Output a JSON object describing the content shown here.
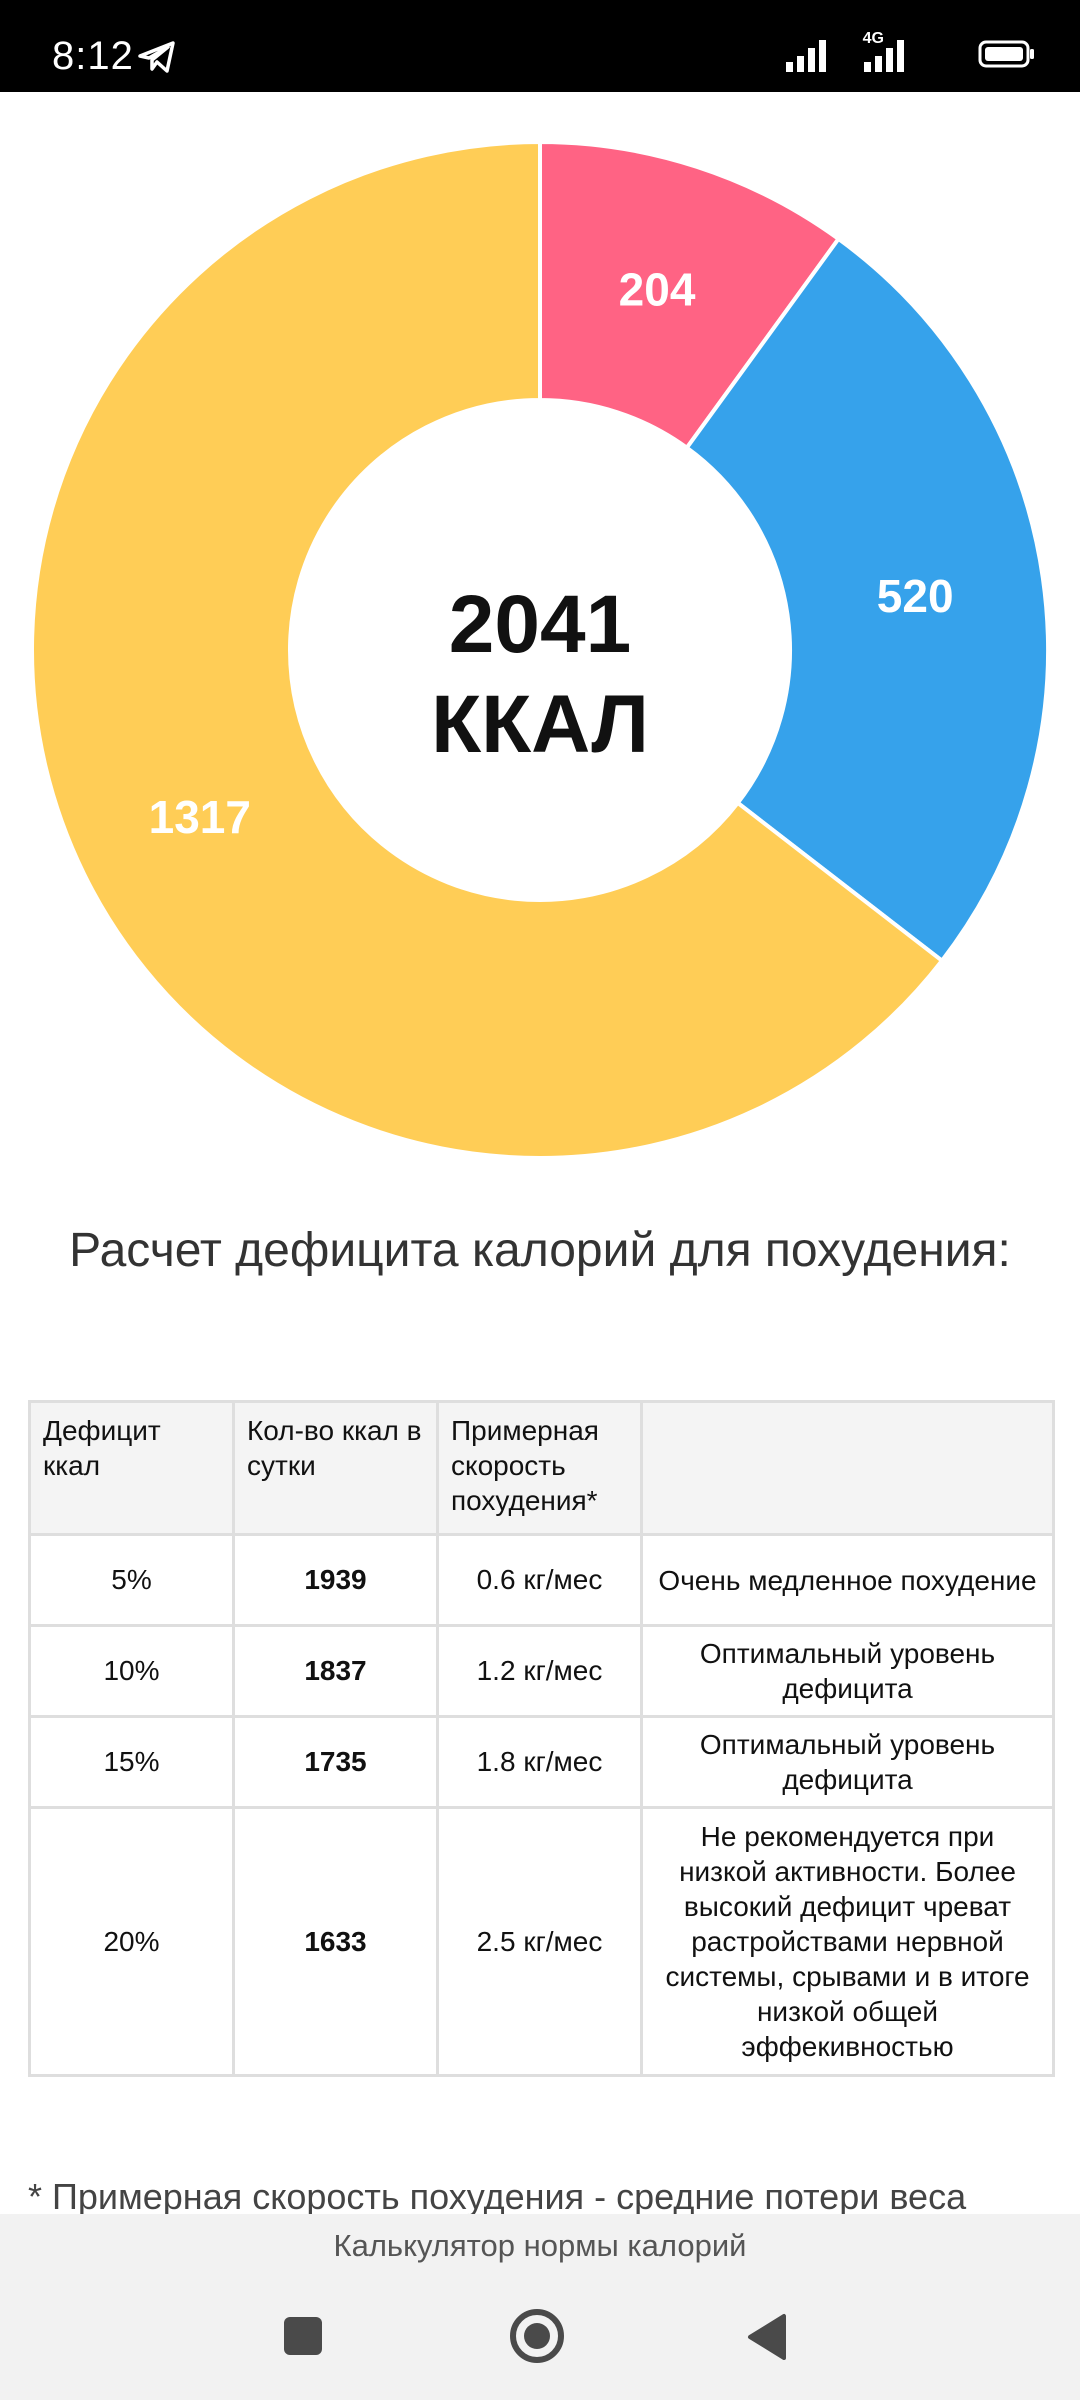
{
  "status_bar": {
    "time": "8:12",
    "network": "4G",
    "icons": [
      "telegram-icon",
      "signal-icon",
      "signal-icon",
      "battery-icon"
    ]
  },
  "chart_data": {
    "type": "pie",
    "subtype": "donut",
    "center_value": "2041",
    "center_unit": "ККАЛ",
    "slices": [
      {
        "label": "204",
        "value": 204,
        "color": "#FF6384"
      },
      {
        "label": "520",
        "value": 520,
        "color": "#36A2EB"
      },
      {
        "label": "1317",
        "value": 1317,
        "color": "#FFCD56"
      }
    ]
  },
  "heading": "Расчет дефицита калорий для похудения:",
  "table": {
    "headers": [
      "Дефицит ккал",
      "Кол-во ккал в сутки",
      "Примерная скорость похудения*",
      ""
    ],
    "rows": [
      {
        "deficit": "5%",
        "kcal": "1939",
        "speed": "0.6 кг/мес",
        "note": "Очень медленное похудение",
        "note_color": "#777777"
      },
      {
        "deficit": "10%",
        "kcal": "1837",
        "speed": "1.2 кг/мес",
        "note": "Оптимальный уровень дефицита",
        "note_color": "#1f8a1f"
      },
      {
        "deficit": "15%",
        "kcal": "1735",
        "speed": "1.8 кг/мес",
        "note": "Оптимальный уровень дефицита",
        "note_color": "#1f8a1f"
      },
      {
        "deficit": "20%",
        "kcal": "1633",
        "speed": "2.5 кг/мес",
        "note": "Не рекомендуется при низкой активности. Более высокий дефицит чреват растройствами нервной системы, срывами и в итоге низкой общей эффекивностью",
        "note_color": "#d21b1b"
      }
    ]
  },
  "footnote": "* Примерная скорость похудения - средние потери веса",
  "app_title": "Калькулятор нормы калорий",
  "nav": {
    "recents": "recents-square-icon",
    "home": "home-circle-icon",
    "back": "back-triangle-icon"
  }
}
